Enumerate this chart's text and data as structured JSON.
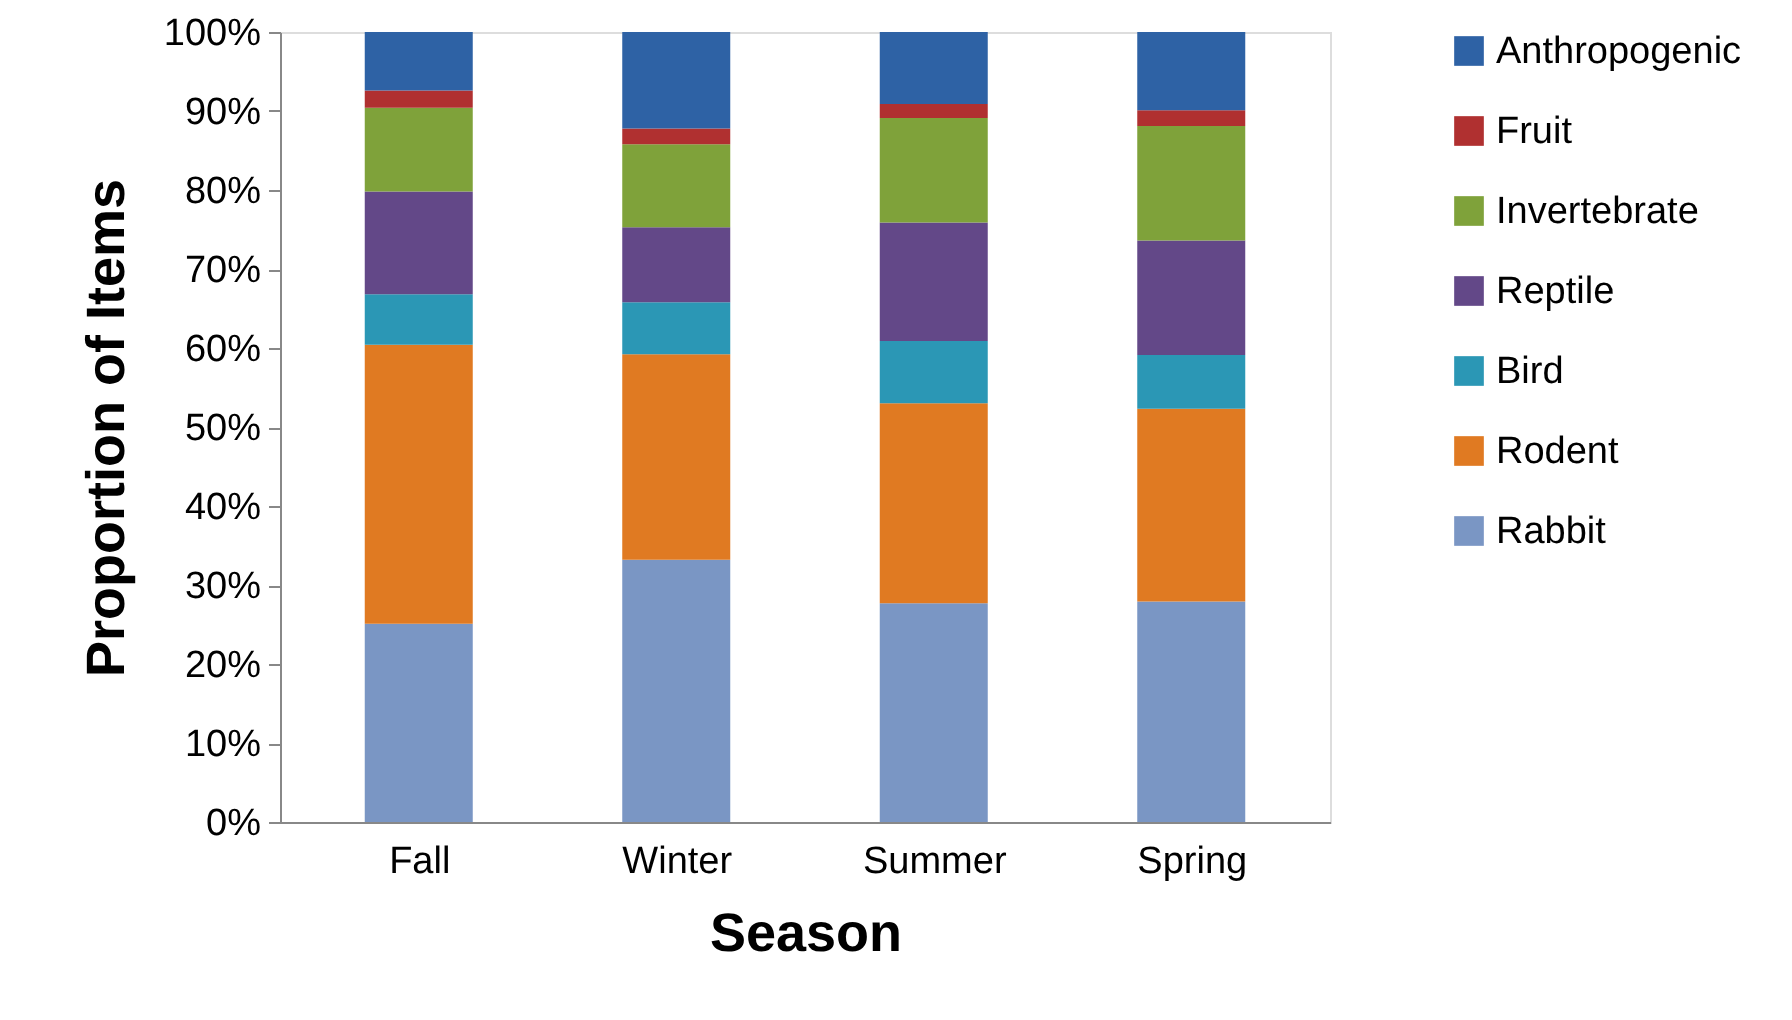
{
  "chart_data": {
    "type": "bar",
    "stacked": true,
    "xlabel": "Season",
    "ylabel": "Proportion of Items",
    "categories": [
      "Fall",
      "Winter",
      "Summer",
      "Spring"
    ],
    "series": [
      {
        "name": "Rabbit",
        "color": "#7a96c4",
        "values": [
          25.1,
          33.2,
          27.7,
          27.9
        ]
      },
      {
        "name": "Rodent",
        "color": "#e07a22",
        "values": [
          35.3,
          26.0,
          25.3,
          24.4
        ]
      },
      {
        "name": "Bird",
        "color": "#2b97b5",
        "values": [
          6.4,
          6.6,
          7.9,
          6.8
        ]
      },
      {
        "name": "Reptile",
        "color": "#634888",
        "values": [
          13.0,
          9.5,
          15.0,
          14.5
        ]
      },
      {
        "name": "Invertebrate",
        "color": "#7fa23a",
        "values": [
          10.6,
          10.5,
          13.2,
          14.5
        ]
      },
      {
        "name": "Fruit",
        "color": "#b03030",
        "values": [
          2.2,
          2.0,
          1.8,
          2.0
        ]
      },
      {
        "name": "Anthropogenic",
        "color": "#2e62a5",
        "values": [
          7.4,
          12.2,
          9.1,
          9.9
        ]
      }
    ],
    "ylim": [
      0,
      100
    ],
    "yticks": [
      {
        "value": 0,
        "label": "0%"
      },
      {
        "value": 10,
        "label": "10%"
      },
      {
        "value": 20,
        "label": "20%"
      },
      {
        "value": 30,
        "label": "30%"
      },
      {
        "value": 40,
        "label": "40%"
      },
      {
        "value": 50,
        "label": "50%"
      },
      {
        "value": 60,
        "label": "60%"
      },
      {
        "value": 70,
        "label": "70%"
      },
      {
        "value": 80,
        "label": "80%"
      },
      {
        "value": 90,
        "label": "90%"
      },
      {
        "value": 100,
        "label": "100%"
      }
    ],
    "grid": false,
    "legend": "right"
  }
}
